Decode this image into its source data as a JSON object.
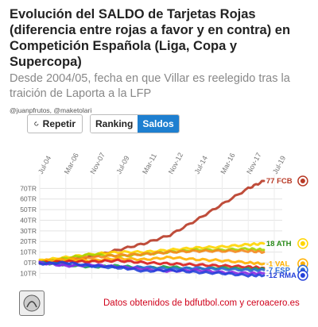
{
  "header": {
    "title": "Evolución del SALDO de Tarjetas Rojas (diferencia entre rojas a favor y en contra) en Competición Española (Liga, Copa y Supercopa)",
    "subtitle": "Desde 2004/05, fecha en que Villar es reelegido tras la traición de Laporta a la LFP",
    "handles": "@juanpfrutos, @maketolari"
  },
  "controls": {
    "repeat_label": "Repetir",
    "ranking_label": "Ranking",
    "saldos_label": "Saldos",
    "active_tab": "Saldos"
  },
  "footer": {
    "source": "Datos obtenidos de bdfutbol.com y ceroacero.es"
  },
  "chart_data": {
    "type": "line",
    "x_ticks": [
      "Jul-04",
      "Mar-06",
      "Nov-07",
      "Jul-09",
      "Mar-11",
      "Nov-12",
      "Jul-14",
      "Mar-16",
      "Nov-17",
      "Jul-19"
    ],
    "y_ticks": [
      "10TR",
      "0TR",
      "10TR",
      "20TR",
      "30TR",
      "40TR",
      "50TR",
      "60TR",
      "70TR"
    ],
    "y_tick_values": [
      -10,
      0,
      10,
      20,
      30,
      40,
      50,
      60,
      70
    ],
    "ylim": [
      -15,
      80
    ],
    "grid": true,
    "series": [
      {
        "name": "FCB",
        "color": "#b83a26",
        "end_label": "77",
        "x": [
          0,
          1,
          2,
          3,
          4,
          5,
          6,
          7,
          8,
          8.6
        ],
        "values": [
          0,
          2,
          6,
          12,
          18,
          26,
          40,
          55,
          70,
          77
        ]
      },
      {
        "name": "ATH",
        "color": "#ffd500",
        "end_label": "18",
        "x": [
          0,
          1,
          2,
          3,
          4,
          5,
          6,
          7,
          8,
          8.6
        ],
        "values": [
          2,
          5,
          8,
          10,
          10,
          12,
          14,
          15,
          17,
          18
        ]
      },
      {
        "name": "",
        "color": "#a6d400",
        "end_label": "",
        "x": [
          0,
          1,
          2,
          3,
          4,
          5,
          6,
          7,
          8,
          8.6
        ],
        "values": [
          0,
          4,
          8,
          6,
          8,
          10,
          12,
          12,
          13,
          12
        ]
      },
      {
        "name": "",
        "color": "#f58a1f",
        "end_label": "",
        "x": [
          0,
          1,
          2,
          3,
          4,
          5,
          6,
          7,
          8,
          8.6
        ],
        "values": [
          1,
          3,
          5,
          7,
          8,
          10,
          11,
          11,
          11,
          10
        ]
      },
      {
        "name": "VAL",
        "color": "#ffb000",
        "end_label": "-1",
        "x": [
          0,
          1,
          2,
          3,
          4,
          5,
          6,
          7,
          8,
          8.6
        ],
        "values": [
          2,
          3,
          2,
          4,
          3,
          5,
          3,
          2,
          0,
          -1
        ]
      },
      {
        "name": "",
        "color": "#d81b1b",
        "end_label": "",
        "x": [
          0,
          1,
          2,
          3,
          4,
          5,
          6,
          7,
          8,
          8.6
        ],
        "values": [
          0,
          1,
          1,
          2,
          0,
          -1,
          -2,
          -3,
          -4,
          -5
        ]
      },
      {
        "name": "",
        "color": "#1aa04a",
        "end_label": "",
        "x": [
          0,
          1,
          2,
          3,
          4,
          5,
          6,
          7,
          8,
          8.6
        ],
        "values": [
          0,
          -2,
          -4,
          -3,
          -5,
          -4,
          -6,
          -5,
          -6,
          -6
        ]
      },
      {
        "name": "ESP",
        "color": "#2d6bd8",
        "end_label": "-7",
        "x": [
          0,
          1,
          2,
          3,
          4,
          5,
          6,
          7,
          8,
          8.6
        ],
        "values": [
          0,
          -2,
          -3,
          -5,
          -4,
          -6,
          -5,
          -6,
          -7,
          -7
        ]
      },
      {
        "name": "",
        "color": "#8a2be2",
        "end_label": "",
        "x": [
          0,
          1,
          2,
          3,
          4,
          5,
          6,
          7,
          8,
          8.6
        ],
        "values": [
          0,
          -3,
          -2,
          -4,
          -6,
          -8,
          -7,
          -9,
          -10,
          -10
        ]
      },
      {
        "name": "RMA",
        "color": "#2541d9",
        "end_label": "-12",
        "x": [
          0,
          1,
          2,
          3,
          4,
          5,
          6,
          7,
          8,
          8.6
        ],
        "values": [
          -1,
          0,
          -3,
          -4,
          -8,
          -7,
          -9,
          -10,
          -12,
          -12
        ]
      }
    ]
  }
}
